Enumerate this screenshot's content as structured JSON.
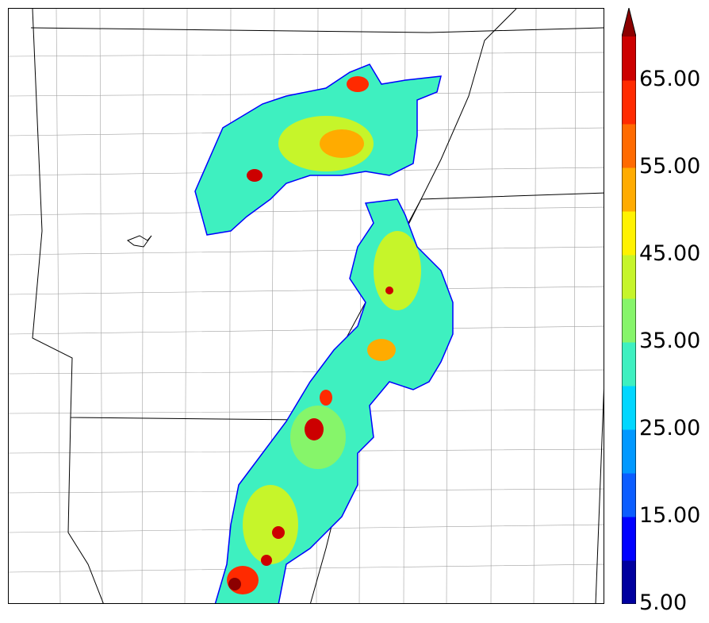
{
  "colorbar": {
    "labels": [
      "65.00",
      "55.00",
      "45.00",
      "35.00",
      "25.00",
      "15.00",
      "5.00"
    ],
    "colors": [
      "#00009f",
      "#0000ff",
      "#0b5dff",
      "#0098ff",
      "#00d7ff",
      "#3ef0c0",
      "#86f56a",
      "#c6f52a",
      "#fff200",
      "#ffab00",
      "#ff6a00",
      "#ff2a00",
      "#cc0000",
      "#8c0000"
    ],
    "extend": "max"
  },
  "map": {
    "background": "#ffffff",
    "state_border_color": "#000000",
    "county_border_color": "#9a9a9a"
  }
}
